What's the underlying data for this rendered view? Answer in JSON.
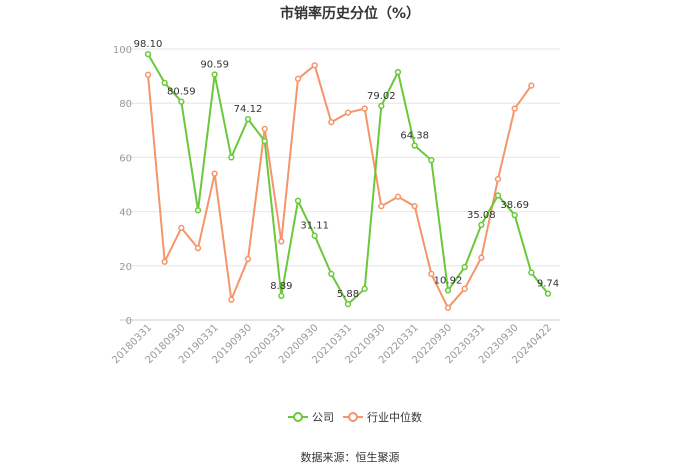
{
  "chart_data": {
    "type": "line",
    "title": "市销率历史分位（%）",
    "source": "数据来源：恒生聚源",
    "ylim": [
      0,
      100
    ],
    "yticks": [
      0,
      20,
      40,
      60,
      80,
      100
    ],
    "grid": true,
    "legend_position": "bottom",
    "x_tick_labels": [
      "20180331",
      "20180930",
      "20190331",
      "20190930",
      "20200331",
      "20200930",
      "20210331",
      "20210930",
      "20220331",
      "20220930",
      "20230331",
      "20230930",
      "20240422"
    ],
    "x": [
      "20180331",
      "20180630",
      "20180930",
      "20181231",
      "20190331",
      "20190630",
      "20190930",
      "20191231",
      "20200331",
      "20200630",
      "20200930",
      "20201231",
      "20210331",
      "20210630",
      "20210930",
      "20211231",
      "20220331",
      "20220630",
      "20220930",
      "20221231",
      "20230331",
      "20230630",
      "20230930",
      "20231231",
      "20240422"
    ],
    "series": [
      {
        "name": "公司",
        "color": "#6ac93a",
        "values": [
          98.1,
          87.5,
          80.59,
          40.5,
          90.59,
          60.0,
          74.12,
          66.0,
          8.89,
          44.0,
          31.11,
          17.0,
          5.88,
          11.5,
          79.02,
          91.5,
          64.38,
          59.0,
          10.92,
          19.5,
          35.08,
          46.0,
          38.69,
          17.5,
          9.74
        ],
        "labels": {
          "0": "98.10",
          "2": "80.59",
          "4": "90.59",
          "6": "74.12",
          "8": "8.89",
          "10": "31.11",
          "12": "5.88",
          "14": "79.02",
          "16": "64.38",
          "18": "10.92",
          "20": "35.08",
          "22": "38.69",
          "24": "9.74"
        }
      },
      {
        "name": "行业中位数",
        "color": "#f5956a",
        "values": [
          90.5,
          21.5,
          34.0,
          26.5,
          54.0,
          7.5,
          22.5,
          70.5,
          29.0,
          89.0,
          94.0,
          73.0,
          76.5,
          78.0,
          42.0,
          45.5,
          42.0,
          17.0,
          4.5,
          11.5,
          23.0,
          52.0,
          78.0,
          86.5,
          null
        ]
      }
    ]
  }
}
